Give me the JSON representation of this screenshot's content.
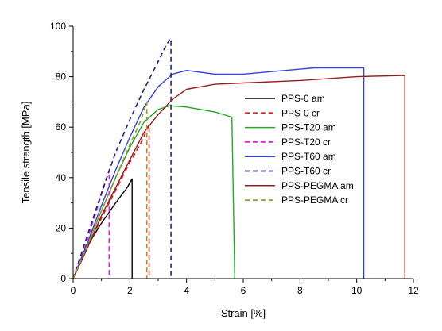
{
  "chart_data": {
    "type": "line",
    "xlabel": "Strain [%]",
    "ylabel": "Tensile strength [MPa]",
    "xlim": [
      0,
      12
    ],
    "ylim": [
      0,
      100
    ],
    "xticks": [
      0,
      2,
      4,
      6,
      8,
      10,
      12
    ],
    "yticks": [
      0,
      20,
      40,
      60,
      80,
      100
    ],
    "grid": false,
    "legend_position": "center-right",
    "series": [
      {
        "name": "PPS-0 am",
        "color": "#000000",
        "dash": "solid",
        "points": [
          [
            0,
            0
          ],
          [
            0.5,
            13
          ],
          [
            1.0,
            22
          ],
          [
            1.5,
            30
          ],
          [
            1.9,
            36
          ],
          [
            2.08,
            39.5
          ],
          [
            2.08,
            0
          ]
        ]
      },
      {
        "name": "PPS-0 cr",
        "color": "#dd2222",
        "dash": "dashed",
        "points": [
          [
            0,
            0
          ],
          [
            0.5,
            12
          ],
          [
            1.0,
            24
          ],
          [
            1.5,
            35
          ],
          [
            2.0,
            46
          ],
          [
            2.4,
            54
          ],
          [
            2.68,
            61
          ],
          [
            2.68,
            0
          ]
        ]
      },
      {
        "name": "PPS-T20 am",
        "color": "#22aa22",
        "dash": "solid",
        "points": [
          [
            0,
            0
          ],
          [
            0.5,
            13
          ],
          [
            1.0,
            27
          ],
          [
            1.5,
            40
          ],
          [
            2.0,
            52
          ],
          [
            2.5,
            62
          ],
          [
            3.0,
            67
          ],
          [
            3.4,
            68.5
          ],
          [
            4.0,
            68
          ],
          [
            5.0,
            66
          ],
          [
            5.6,
            64
          ],
          [
            5.7,
            0
          ]
        ]
      },
      {
        "name": "PPS-T20 cr",
        "color": "#dd22dd",
        "dash": "dashed",
        "points": [
          [
            0,
            0
          ],
          [
            0.4,
            12
          ],
          [
            0.8,
            26
          ],
          [
            1.1,
            37
          ],
          [
            1.27,
            43
          ],
          [
            1.27,
            0
          ]
        ]
      },
      {
        "name": "PPS-T60 am",
        "color": "#3344dd",
        "dash": "solid",
        "points": [
          [
            0,
            0
          ],
          [
            0.5,
            14
          ],
          [
            1.0,
            29
          ],
          [
            1.5,
            43
          ],
          [
            2.0,
            56
          ],
          [
            2.5,
            68
          ],
          [
            3.0,
            76
          ],
          [
            3.5,
            81
          ],
          [
            4.0,
            82.5
          ],
          [
            5.0,
            81
          ],
          [
            6.0,
            81
          ],
          [
            7.0,
            82
          ],
          [
            8.5,
            83.5
          ],
          [
            10.0,
            83.5
          ],
          [
            10.25,
            83.5
          ],
          [
            10.25,
            0
          ]
        ]
      },
      {
        "name": "PPS-T60 cr",
        "color": "#22228a",
        "dash": "dashed",
        "points": [
          [
            0,
            0
          ],
          [
            0.5,
            17
          ],
          [
            1.0,
            34
          ],
          [
            1.5,
            50
          ],
          [
            2.0,
            63
          ],
          [
            2.5,
            75
          ],
          [
            3.0,
            86
          ],
          [
            3.3,
            93
          ],
          [
            3.45,
            95
          ],
          [
            3.45,
            0
          ]
        ]
      },
      {
        "name": "PPS-PEGMA am",
        "color": "#991c1c",
        "dash": "solid",
        "points": [
          [
            0,
            0
          ],
          [
            0.5,
            12
          ],
          [
            1.0,
            25
          ],
          [
            1.5,
            36
          ],
          [
            2.0,
            47
          ],
          [
            2.5,
            58
          ],
          [
            3.0,
            65
          ],
          [
            3.5,
            71
          ],
          [
            4.0,
            75
          ],
          [
            5.0,
            77
          ],
          [
            6.0,
            77.5
          ],
          [
            8.0,
            78.5
          ],
          [
            10.0,
            80
          ],
          [
            11.7,
            80.5
          ],
          [
            11.7,
            0
          ]
        ]
      },
      {
        "name": "PPS-PEGMA cr",
        "color": "#99992a",
        "dash": "dashed",
        "points": [
          [
            0,
            0
          ],
          [
            0.5,
            13
          ],
          [
            1.0,
            27
          ],
          [
            1.5,
            40
          ],
          [
            2.0,
            53
          ],
          [
            2.4,
            63
          ],
          [
            2.6,
            70
          ],
          [
            2.6,
            0
          ]
        ]
      }
    ]
  }
}
